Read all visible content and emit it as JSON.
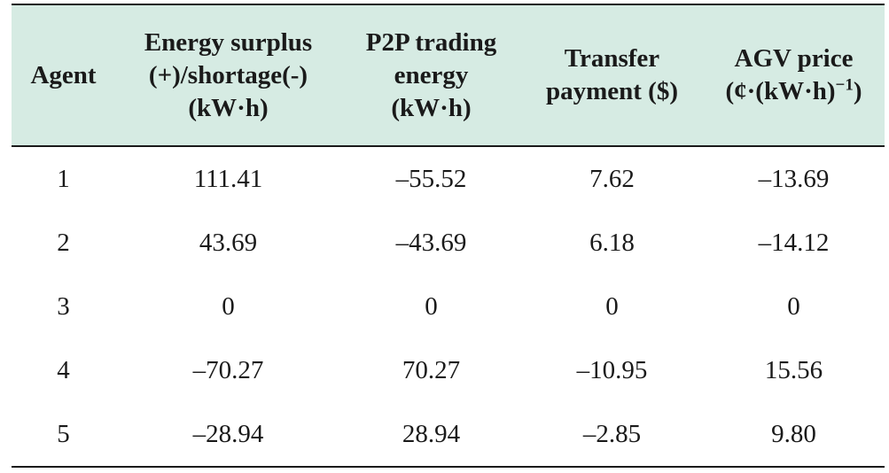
{
  "table": {
    "headers": {
      "agent": "Agent",
      "surplus": [
        "Energy surplus",
        "(+)/shortage(-)",
        "(kW·h)"
      ],
      "p2p": [
        "P2P trading",
        "energy",
        "(kW·h)"
      ],
      "transfer": [
        "Transfer",
        "payment ($)"
      ],
      "agv": [
        "AGV price",
        "(¢·(kW·h)",
        "−1",
        ")"
      ]
    },
    "rows": [
      [
        "1",
        "111.41",
        "–55.52",
        "7.62",
        "–13.69"
      ],
      [
        "2",
        "43.69",
        "–43.69",
        "6.18",
        "–14.12"
      ],
      [
        "3",
        "0",
        "0",
        "0",
        "0"
      ],
      [
        "4",
        "–70.27",
        "70.27",
        "–10.95",
        "15.56"
      ],
      [
        "5",
        "–28.94",
        "28.94",
        "–2.85",
        "9.80"
      ]
    ]
  }
}
